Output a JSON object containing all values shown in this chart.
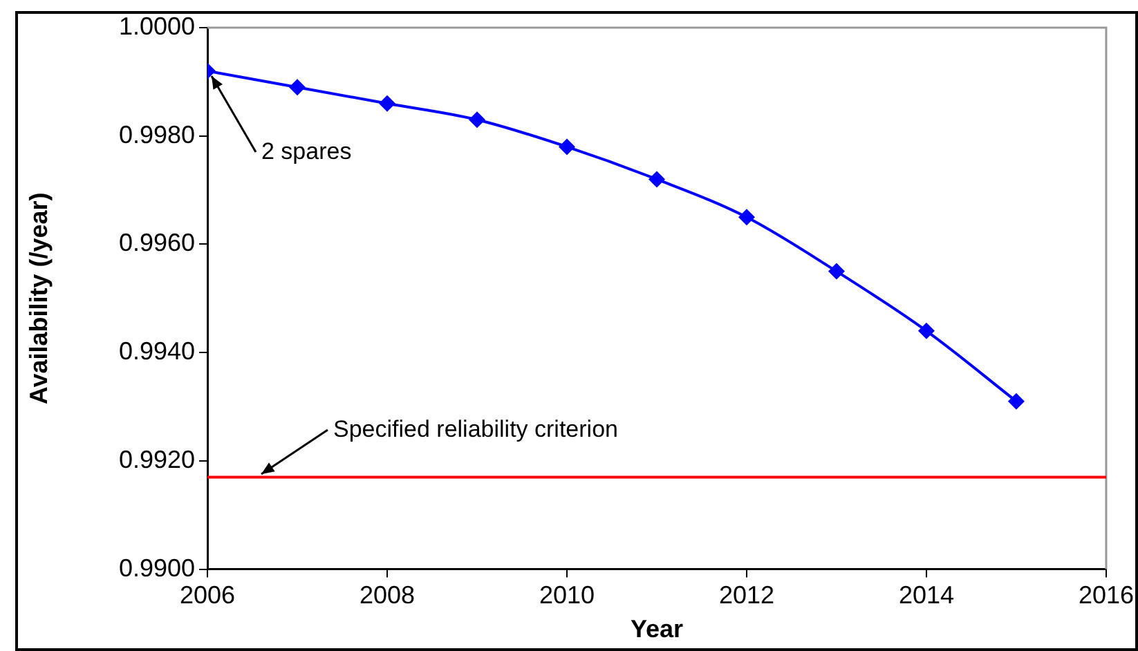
{
  "chart_data": {
    "type": "line",
    "xlabel": "Year",
    "ylabel": "Availability (/year)",
    "x": [
      2006,
      2007,
      2008,
      2009,
      2010,
      2011,
      2012,
      2013,
      2014,
      2015
    ],
    "series": [
      {
        "color": "#0000ff",
        "values": [
          0.9992,
          0.9989,
          0.9986,
          0.9983,
          0.9978,
          0.9972,
          0.9965,
          0.9955,
          0.9944,
          0.9931
        ]
      }
    ],
    "xlim": [
      2006,
      2016
    ],
    "xticks": [
      2006,
      2008,
      2010,
      2012,
      2014,
      2016
    ],
    "ylim": [
      0.99,
      1.0
    ],
    "yticks": [
      {
        "value": 0.99,
        "label": "0.9900"
      },
      {
        "value": 0.992,
        "label": "0.9920"
      },
      {
        "value": 0.994,
        "label": "0.9940"
      },
      {
        "value": 0.996,
        "label": "0.9960"
      },
      {
        "value": 0.998,
        "label": "0.9980"
      },
      {
        "value": 1.0,
        "label": "1.0000"
      }
    ],
    "ref_lines": [
      {
        "axis": "y",
        "value": 0.9917,
        "color": "#ff0000"
      }
    ],
    "annotations": [
      {
        "text": "2 spares",
        "x": 2006,
        "y": 0.9992
      },
      {
        "text": "Specified reliability criterion",
        "x": 2006.6,
        "y": 0.9917
      }
    ],
    "grid": false,
    "legend": false,
    "marker": "diamond",
    "line_style": "solid"
  }
}
